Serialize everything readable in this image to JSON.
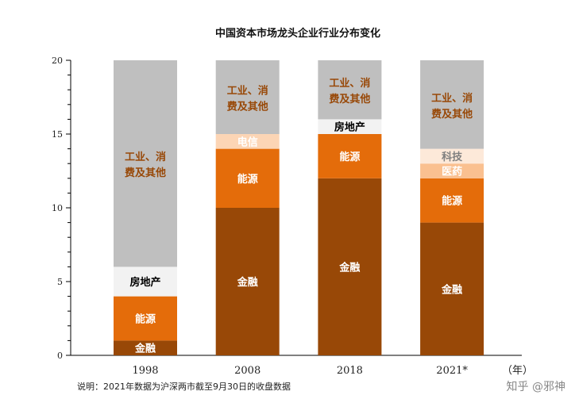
{
  "chart_data": {
    "type": "bar",
    "stacked": true,
    "title": "中国资本市场龙头企业行业分布变化",
    "categories": [
      "1998",
      "2008",
      "2018",
      "2021*"
    ],
    "x_unit": "（年）",
    "ylim": [
      0,
      20
    ],
    "yticks": [
      0,
      5,
      10,
      15,
      20
    ],
    "grid": false,
    "legend": "none (inline labels)",
    "stacks": [
      [
        {
          "label": "金融",
          "value": 1,
          "color": "#984807",
          "text_color": "#ffffff"
        },
        {
          "label": "能源",
          "value": 3,
          "color": "#e46c0a",
          "text_color": "#ffffff"
        },
        {
          "label": "房地产",
          "value": 2,
          "color": "#f2f2f2",
          "text_color": "#000000"
        },
        {
          "label": "工业、消费及其他",
          "value": 14,
          "color": "#bfbfbf",
          "text_color": "#984807"
        }
      ],
      [
        {
          "label": "金融",
          "value": 10,
          "color": "#984807",
          "text_color": "#ffffff"
        },
        {
          "label": "能源",
          "value": 4,
          "color": "#e46c0a",
          "text_color": "#ffffff"
        },
        {
          "label": "电信",
          "value": 1,
          "color": "#fcd5b5",
          "text_color": "#ffffff"
        },
        {
          "label": "工业、消费及其他",
          "value": 5,
          "color": "#bfbfbf",
          "text_color": "#984807"
        }
      ],
      [
        {
          "label": "金融",
          "value": 12,
          "color": "#984807",
          "text_color": "#ffffff"
        },
        {
          "label": "能源",
          "value": 3,
          "color": "#e46c0a",
          "text_color": "#ffffff"
        },
        {
          "label": "房地产",
          "value": 1,
          "color": "#f2f2f2",
          "text_color": "#000000"
        },
        {
          "label": "工业、消费及其他",
          "value": 4,
          "color": "#bfbfbf",
          "text_color": "#984807"
        }
      ],
      [
        {
          "label": "金融",
          "value": 9,
          "color": "#984807",
          "text_color": "#ffffff"
        },
        {
          "label": "能源",
          "value": 3,
          "color": "#e46c0a",
          "text_color": "#ffffff"
        },
        {
          "label": "医药",
          "value": 1,
          "color": "#fac090",
          "text_color": "#ffffff"
        },
        {
          "label": "科技",
          "value": 1,
          "color": "#fde9d9",
          "text_color": "#7f7f7f"
        },
        {
          "label": "工业、消费及其他",
          "value": 6,
          "color": "#bfbfbf",
          "text_color": "#984807"
        }
      ]
    ],
    "note": "说明：2021年数据为沪深两市截至9月30日的收盘数据"
  },
  "watermark": "知乎 @邪神"
}
